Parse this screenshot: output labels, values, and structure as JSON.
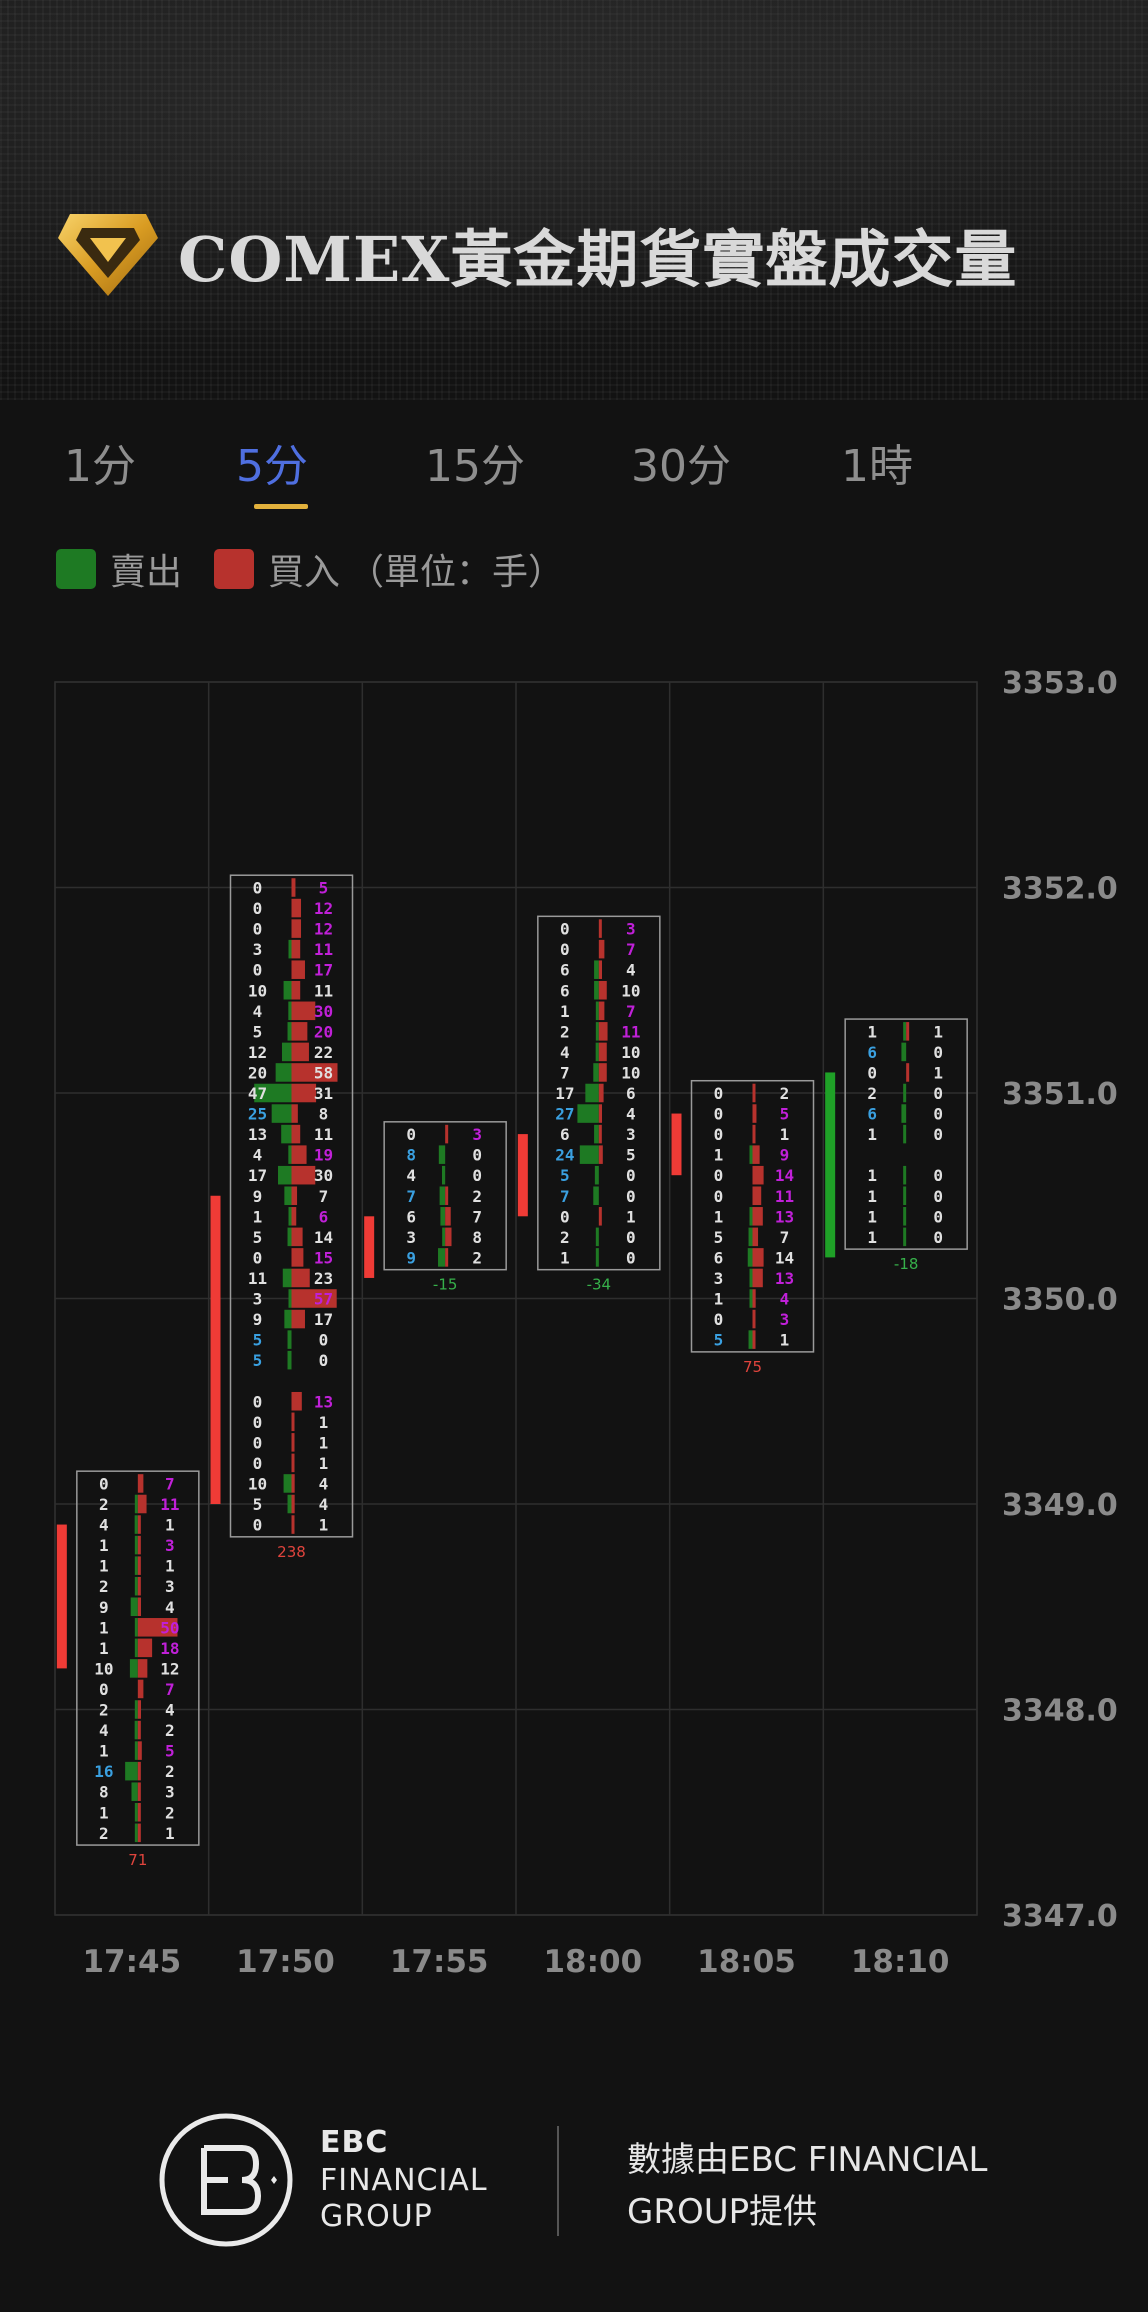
{
  "title": "COMEX黃金期貨實盤成交量",
  "tabs": [
    {
      "label": "1分",
      "active": false
    },
    {
      "label": "5分",
      "active": true
    },
    {
      "label": "15分",
      "active": false
    },
    {
      "label": "30分",
      "active": false
    },
    {
      "label": "1時",
      "active": false
    }
  ],
  "legend": {
    "sell_label": "賣出",
    "buy_label": "買入",
    "unit_label": "（單位：手）",
    "sell_color": "#1e7a23",
    "buy_color": "#b7322d"
  },
  "colors": {
    "accent": "#4f6fe0",
    "underline": "#e2b13c",
    "candle_red": "#ef3b36",
    "candle_green": "#1fa027",
    "highlight_text": "#c020d8",
    "highlight_blue": "#3aa0e0"
  },
  "chart_data": {
    "type": "footprint",
    "title": "",
    "ylim": [
      3347.0,
      3353.0
    ],
    "y_ticks": [
      "3353.0",
      "3352.0",
      "3351.0",
      "3350.0",
      "3349.0",
      "3348.0",
      "3347.0"
    ],
    "price_step": 0.1,
    "categories": [
      "17:45",
      "17:50",
      "17:55",
      "18:00",
      "18:05",
      "18:10"
    ],
    "bars": [
      {
        "time": "17:45",
        "open": 3348.9,
        "close": 3348.2,
        "direction": "down",
        "delta": "71",
        "levels": [
          {
            "price": 3349.1,
            "sell": 0,
            "buy": 7
          },
          {
            "price": 3349.0,
            "sell": 2,
            "buy": 11
          },
          {
            "price": 3348.9,
            "sell": 4,
            "buy": 1
          },
          {
            "price": 3348.8,
            "sell": 1,
            "buy": 3
          },
          {
            "price": 3348.7,
            "sell": 1,
            "buy": 1
          },
          {
            "price": 3348.6,
            "sell": 2,
            "buy": 3
          },
          {
            "price": 3348.5,
            "sell": 9,
            "buy": 4
          },
          {
            "price": 3348.4,
            "sell": 1,
            "buy": 50
          },
          {
            "price": 3348.3,
            "sell": 1,
            "buy": 18
          },
          {
            "price": 3348.2,
            "sell": 10,
            "buy": 12
          },
          {
            "price": 3348.1,
            "sell": 0,
            "buy": 7
          },
          {
            "price": 3348.0,
            "sell": 2,
            "buy": 4
          },
          {
            "price": 3347.9,
            "sell": 4,
            "buy": 2
          },
          {
            "price": 3347.8,
            "sell": 1,
            "buy": 5
          },
          {
            "price": 3347.7,
            "sell": 16,
            "buy": 2
          },
          {
            "price": 3347.6,
            "sell": 8,
            "buy": 3
          },
          {
            "price": 3347.5,
            "sell": 1,
            "buy": 2
          },
          {
            "price": 3347.4,
            "sell": 2,
            "buy": 1
          }
        ]
      },
      {
        "time": "17:50",
        "open": 3349.0,
        "close": 3350.5,
        "direction": "up",
        "delta": "238",
        "levels": [
          {
            "price": 3352.0,
            "sell": 0,
            "buy": 5
          },
          {
            "price": 3351.9,
            "sell": 0,
            "buy": 12
          },
          {
            "price": 3351.8,
            "sell": 0,
            "buy": 12
          },
          {
            "price": 3351.7,
            "sell": 3,
            "buy": 11
          },
          {
            "price": 3351.6,
            "sell": 0,
            "buy": 17
          },
          {
            "price": 3351.5,
            "sell": 10,
            "buy": 11
          },
          {
            "price": 3351.4,
            "sell": 4,
            "buy": 30
          },
          {
            "price": 3351.3,
            "sell": 5,
            "buy": 20
          },
          {
            "price": 3351.2,
            "sell": 12,
            "buy": 22
          },
          {
            "price": 3351.1,
            "sell": 20,
            "buy": 58
          },
          {
            "price": 3351.0,
            "sell": 47,
            "buy": 31
          },
          {
            "price": 3350.9,
            "sell": 25,
            "buy": 8
          },
          {
            "price": 3350.8,
            "sell": 13,
            "buy": 11
          },
          {
            "price": 3350.7,
            "sell": 4,
            "buy": 19
          },
          {
            "price": 3350.6,
            "sell": 17,
            "buy": 30
          },
          {
            "price": 3350.5,
            "sell": 9,
            "buy": 7
          },
          {
            "price": 3350.4,
            "sell": 1,
            "buy": 6
          },
          {
            "price": 3350.3,
            "sell": 5,
            "buy": 14
          },
          {
            "price": 3350.2,
            "sell": 0,
            "buy": 15
          },
          {
            "price": 3350.1,
            "sell": 11,
            "buy": 23
          },
          {
            "price": 3350.0,
            "sell": 3,
            "buy": 57
          },
          {
            "price": 3349.9,
            "sell": 9,
            "buy": 17
          },
          {
            "price": 3349.8,
            "sell": 5,
            "buy": 0
          },
          {
            "price": 3349.7,
            "sell": 5,
            "buy": 0
          },
          {
            "price": 3349.5,
            "sell": 0,
            "buy": 13
          },
          {
            "price": 3349.4,
            "sell": 0,
            "buy": 1
          },
          {
            "price": 3349.3,
            "sell": 0,
            "buy": 1
          },
          {
            "price": 3349.2,
            "sell": 0,
            "buy": 1
          },
          {
            "price": 3349.1,
            "sell": 10,
            "buy": 4
          },
          {
            "price": 3349.0,
            "sell": 5,
            "buy": 4
          },
          {
            "price": 3348.9,
            "sell": 0,
            "buy": 1
          }
        ]
      },
      {
        "time": "17:55",
        "open": 3350.4,
        "close": 3350.1,
        "direction": "down",
        "delta": "-15",
        "levels": [
          {
            "price": 3350.8,
            "sell": 0,
            "buy": 3
          },
          {
            "price": 3350.7,
            "sell": 8,
            "buy": 0
          },
          {
            "price": 3350.6,
            "sell": 4,
            "buy": 0
          },
          {
            "price": 3350.5,
            "sell": 7,
            "buy": 2
          },
          {
            "price": 3350.4,
            "sell": 6,
            "buy": 7
          },
          {
            "price": 3350.3,
            "sell": 3,
            "buy": 8
          },
          {
            "price": 3350.2,
            "sell": 9,
            "buy": 2
          }
        ]
      },
      {
        "time": "18:00",
        "open": 3350.8,
        "close": 3350.4,
        "direction": "down",
        "delta": "-34",
        "levels": [
          {
            "price": 3351.8,
            "sell": 0,
            "buy": 3
          },
          {
            "price": 3351.7,
            "sell": 0,
            "buy": 7
          },
          {
            "price": 3351.6,
            "sell": 6,
            "buy": 4
          },
          {
            "price": 3351.5,
            "sell": 6,
            "buy": 10
          },
          {
            "price": 3351.4,
            "sell": 1,
            "buy": 7
          },
          {
            "price": 3351.3,
            "sell": 2,
            "buy": 11
          },
          {
            "price": 3351.2,
            "sell": 4,
            "buy": 10
          },
          {
            "price": 3351.1,
            "sell": 7,
            "buy": 10
          },
          {
            "price": 3351.0,
            "sell": 17,
            "buy": 6
          },
          {
            "price": 3350.9,
            "sell": 27,
            "buy": 4
          },
          {
            "price": 3350.8,
            "sell": 6,
            "buy": 3
          },
          {
            "price": 3350.7,
            "sell": 24,
            "buy": 5
          },
          {
            "price": 3350.6,
            "sell": 5,
            "buy": 0
          },
          {
            "price": 3350.5,
            "sell": 7,
            "buy": 0
          },
          {
            "price": 3350.4,
            "sell": 0,
            "buy": 1
          },
          {
            "price": 3350.3,
            "sell": 2,
            "buy": 0
          },
          {
            "price": 3350.2,
            "sell": 1,
            "buy": 0
          }
        ]
      },
      {
        "time": "18:05",
        "open": 3350.9,
        "close": 3350.6,
        "direction": "down",
        "delta": "75",
        "levels": [
          {
            "price": 3351.0,
            "sell": 0,
            "buy": 2
          },
          {
            "price": 3350.9,
            "sell": 0,
            "buy": 5
          },
          {
            "price": 3350.8,
            "sell": 0,
            "buy": 1
          },
          {
            "price": 3350.7,
            "sell": 1,
            "buy": 9
          },
          {
            "price": 3350.6,
            "sell": 0,
            "buy": 14
          },
          {
            "price": 3350.5,
            "sell": 0,
            "buy": 11
          },
          {
            "price": 3350.4,
            "sell": 1,
            "buy": 13
          },
          {
            "price": 3350.3,
            "sell": 5,
            "buy": 7
          },
          {
            "price": 3350.2,
            "sell": 6,
            "buy": 14
          },
          {
            "price": 3350.1,
            "sell": 3,
            "buy": 13
          },
          {
            "price": 3350.0,
            "sell": 1,
            "buy": 4
          },
          {
            "price": 3349.9,
            "sell": 0,
            "buy": 3
          },
          {
            "price": 3349.8,
            "sell": 5,
            "buy": 1
          }
        ]
      },
      {
        "time": "18:10",
        "open": 3350.2,
        "close": 3351.1,
        "direction": "up",
        "delta": "-18",
        "levels": [
          {
            "price": 3351.3,
            "sell": 1,
            "buy": 1
          },
          {
            "price": 3351.2,
            "sell": 6,
            "buy": 0
          },
          {
            "price": 3351.1,
            "sell": 0,
            "buy": 1
          },
          {
            "price": 3351.0,
            "sell": 2,
            "buy": 0
          },
          {
            "price": 3350.9,
            "sell": 6,
            "buy": 0
          },
          {
            "price": 3350.8,
            "sell": 1,
            "buy": 0
          },
          {
            "price": 3350.6,
            "sell": 1,
            "buy": 0
          },
          {
            "price": 3350.5,
            "sell": 1,
            "buy": 0
          },
          {
            "price": 3350.4,
            "sell": 1,
            "buy": 0
          },
          {
            "price": 3350.3,
            "sell": 1,
            "buy": 0
          }
        ]
      }
    ]
  },
  "footer": {
    "brand_line1": "EBC",
    "brand_line2": "FINANCIAL",
    "brand_line3": "GROUP",
    "source_text": "數據由EBC FINANCIAL GROUP提供"
  }
}
